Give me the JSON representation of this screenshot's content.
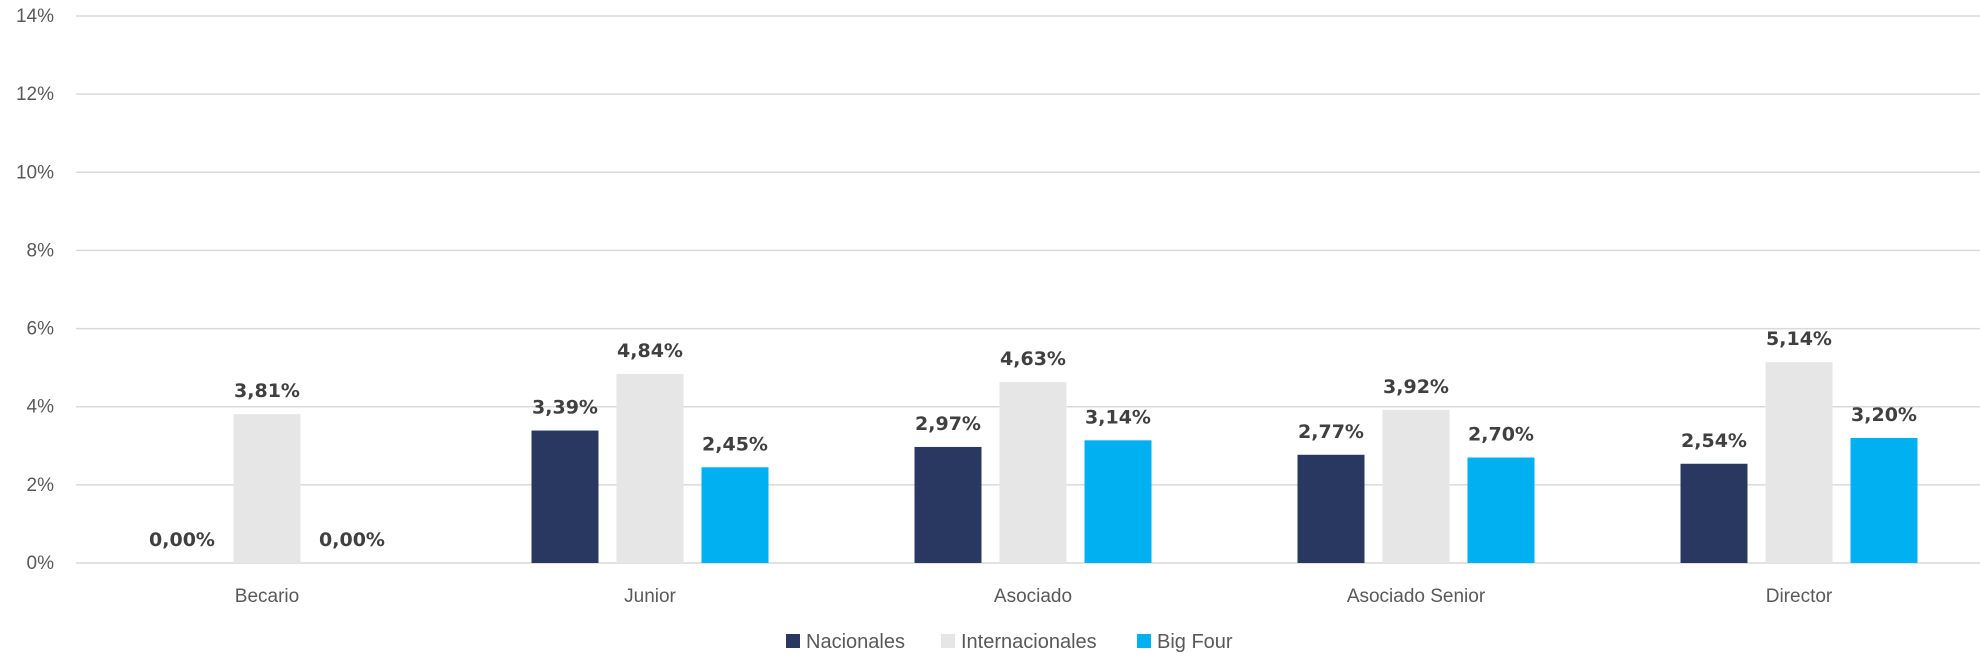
{
  "chart_data": {
    "type": "bar",
    "title": "",
    "xlabel": "",
    "ylabel": "",
    "categories": [
      "Becario",
      "Junior",
      "Asociado",
      "Asociado Senior",
      "Director"
    ],
    "series": [
      {
        "name": "Nacionales",
        "color": "#283860",
        "values": [
          0.0,
          3.39,
          2.97,
          2.77,
          2.54
        ],
        "labels": [
          "0,00%",
          "3,39%",
          "2,97%",
          "2,77%",
          "2,54%"
        ]
      },
      {
        "name": "Internacionales",
        "color": "#e6e6e6",
        "values": [
          3.81,
          4.84,
          4.63,
          3.92,
          5.14
        ],
        "labels": [
          "3,81%",
          "4,84%",
          "4,63%",
          "3,92%",
          "5,14%"
        ]
      },
      {
        "name": "Big Four",
        "color": "#00b0f0",
        "values": [
          0.0,
          2.45,
          3.14,
          2.7,
          3.2
        ],
        "labels": [
          "0,00%",
          "2,45%",
          "3,14%",
          "2,70%",
          "3,20%"
        ]
      }
    ],
    "ylim": [
      0,
      14
    ],
    "yticks": [
      0,
      2,
      4,
      6,
      8,
      10,
      12,
      14
    ],
    "ytick_labels": [
      "0%",
      "2%",
      "4%",
      "6%",
      "8%",
      "10%",
      "12%",
      "14%"
    ],
    "grid": true,
    "legend_position": "bottom"
  }
}
